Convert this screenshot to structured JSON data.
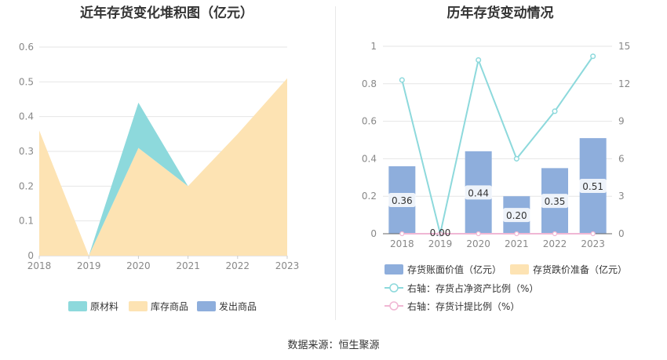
{
  "left_chart": {
    "title": "近年存货变化堆积图（亿元）",
    "legend": [
      "原材料",
      "库存商品",
      "发出商品"
    ]
  },
  "right_chart": {
    "title": "历年存货变动情况",
    "legend": [
      "存货账面价值（亿元）",
      "存货跌价准备（亿元）",
      "右轴：存货占净资产比例（%）",
      "右轴：存货计提比例（%）"
    ]
  },
  "source": "数据来源：恒生聚源",
  "colors": {
    "raw_material": "#8dd9dc",
    "inventory_goods": "#fde3b3",
    "shipped_goods": "#8eaedc",
    "ratio_line": "#8dd9dc",
    "provision_line": "#f0b7d4"
  },
  "chart_data": [
    {
      "type": "area",
      "stacked": true,
      "title": "近年存货变化堆积图（亿元）",
      "x": [
        "2018",
        "2019",
        "2020",
        "2021",
        "2022",
        "2023"
      ],
      "ylim": [
        0,
        0.6
      ],
      "yticks": [
        "0",
        "0.1",
        "0.2",
        "0.3",
        "0.4",
        "0.5",
        "0.6"
      ],
      "series": [
        {
          "name": "库存商品",
          "values": [
            0.36,
            0.0,
            0.31,
            0.2,
            0.35,
            0.51
          ]
        },
        {
          "name": "原材料",
          "values": [
            0.0,
            0.0,
            0.13,
            0.0,
            0.0,
            0.0
          ]
        },
        {
          "name": "发出商品",
          "values": [
            0.0,
            0.0,
            0.0,
            0.0,
            0.0,
            0.0
          ]
        }
      ],
      "grid": true,
      "legend_position": "bottom"
    },
    {
      "type": "bar",
      "title": "历年存货变动情况",
      "categories": [
        "2018",
        "2019",
        "2020",
        "2021",
        "2022",
        "2023"
      ],
      "ylim": [
        0,
        1
      ],
      "yticks": [
        "0",
        "0.2",
        "0.4",
        "0.6",
        "0.8",
        "1"
      ],
      "y2lim": [
        0,
        15
      ],
      "y2ticks": [
        "0",
        "3",
        "6",
        "9",
        "12",
        "15"
      ],
      "series": [
        {
          "name": "存货账面价值（亿元）",
          "type": "bar",
          "values": [
            0.36,
            0.0,
            0.44,
            0.2,
            0.35,
            0.51
          ],
          "labels": [
            "0.36",
            "0.00",
            "0.44",
            "0.20",
            "0.35",
            "0.51"
          ]
        },
        {
          "name": "存货跌价准备（亿元）",
          "type": "bar",
          "values": [
            0,
            0,
            0,
            0,
            0,
            0
          ]
        },
        {
          "name": "右轴：存货占净资产比例（%）",
          "type": "line",
          "axis": "right",
          "values": [
            12.3,
            0.0,
            13.9,
            6.0,
            9.8,
            14.2
          ]
        },
        {
          "name": "右轴：存货计提比例（%）",
          "type": "line",
          "axis": "right",
          "values": [
            0,
            0,
            0,
            0,
            0,
            0
          ]
        }
      ],
      "grid": true,
      "legend_position": "bottom"
    }
  ]
}
